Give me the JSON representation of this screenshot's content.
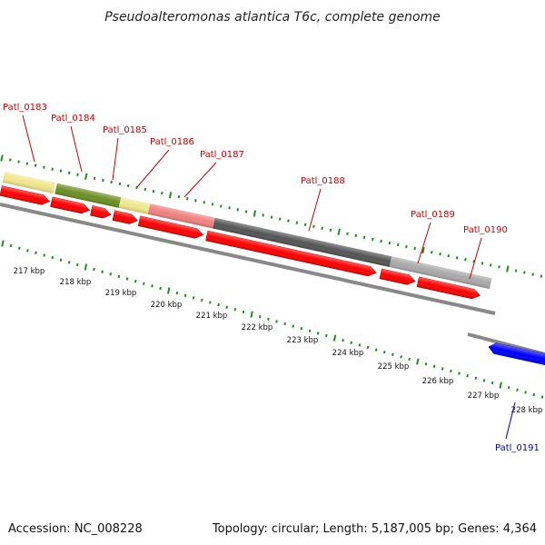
{
  "title": "Pseudoalteromonas atlantica T6c, complete genome",
  "footer": {
    "accession": "Accession: NC_008228",
    "summary": "Topology: circular; Length: 5,187,005 bp; Genes: 4,364"
  },
  "colors": {
    "forward_gene": "#ff0000",
    "reverse_gene": "#0000ff",
    "forward_label": "#cc0000",
    "reverse_label": "#0000cc",
    "tick": "#228b22",
    "backbone": "#888888"
  },
  "scale": {
    "unit": "kbp",
    "labels": [
      "217 kbp",
      "218 kbp",
      "219 kbp",
      "220 kbp",
      "221 kbp",
      "222 kbp",
      "223 kbp",
      "224 kbp",
      "225 kbp",
      "226 kbp",
      "227 kbp",
      "228 kbp"
    ]
  },
  "genes": [
    {
      "locus": "Patl_0183",
      "strand": "+",
      "tag_color": "#f0e68c"
    },
    {
      "locus": "Patl_0184",
      "strand": "+",
      "tag_color": "#6b8e23"
    },
    {
      "locus": "Patl_0185",
      "strand": "+",
      "tag_color": "#f0e68c"
    },
    {
      "locus": "Patl_0186",
      "strand": "+",
      "tag_color": "#f08080"
    },
    {
      "locus": "Patl_0187",
      "strand": "+",
      "tag_color": "#f08080"
    },
    {
      "locus": "Patl_0188",
      "strand": "+",
      "tag_color": "#555555"
    },
    {
      "locus": "Patl_0189",
      "strand": "+",
      "tag_color": "#a9a9a9"
    },
    {
      "locus": "Patl_0190",
      "strand": "+",
      "tag_color": "#bebebe"
    },
    {
      "locus": "Patl_0191",
      "strand": "-",
      "tag_color": ""
    }
  ]
}
